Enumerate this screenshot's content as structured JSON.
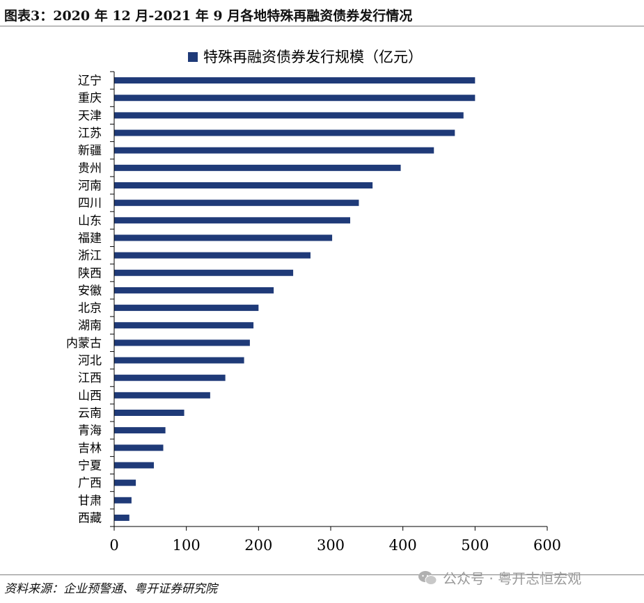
{
  "figure_title": "图表3：2020 年 12 月-2021 年 9 月各地特殊再融资债券发行情况",
  "source_text": "资料来源：企业预警通、粤开证券研究院",
  "watermark": {
    "text": "公众号 · 粤开志恒宏观",
    "icon": "wechat-icon"
  },
  "colors": {
    "bar": "#1f3a78",
    "axis": "#000000",
    "rule": "#7f7f7f"
  },
  "chart_data": {
    "type": "bar",
    "orientation": "horizontal",
    "legend": "特殊再融资债券发行规模（亿元）",
    "legend_position": "top-center",
    "grid": false,
    "xlim": [
      0,
      600
    ],
    "xticks": [
      0,
      100,
      200,
      300,
      400,
      500,
      600
    ],
    "categories": [
      "辽宁",
      "重庆",
      "天津",
      "江苏",
      "新疆",
      "贵州",
      "河南",
      "四川",
      "山东",
      "福建",
      "浙江",
      "陕西",
      "安徽",
      "北京",
      "湖南",
      "内蒙古",
      "河北",
      "江西",
      "山西",
      "云南",
      "青海",
      "吉林",
      "宁夏",
      "广西",
      "甘肃",
      "西藏"
    ],
    "series": [
      {
        "name": "特殊再融资债券发行规模（亿元）",
        "values": [
          500,
          500,
          484,
          472,
          443,
          397,
          358,
          339,
          327,
          302,
          272,
          248,
          221,
          200,
          193,
          188,
          180,
          154,
          133,
          97,
          71,
          68,
          55,
          30,
          24,
          21
        ]
      }
    ]
  }
}
